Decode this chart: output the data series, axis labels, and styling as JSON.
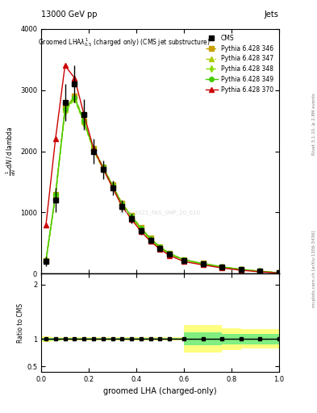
{
  "title_top": "13000 GeV pp",
  "title_right": "Jets",
  "plot_title": "Groomed LHA$\\lambda^1_{0.5}$ (charged only) (CMS jet substructure)",
  "xlabel": "groomed LHA (charged-only)",
  "ylabel": "$\\frac{1}{\\mathrm{d}N}\\,/\\,\\mathrm{d}\\,\\mathrm{lambda}$",
  "right_label": "mcplots.cern.ch [arXiv:1306.3436]",
  "right_label2": "Rivet 3.1.10, ≥ 2.8M events",
  "watermark": "CMS_2021_PAS_SMP_20_010",
  "x": [
    0.02,
    0.06,
    0.1,
    0.14,
    0.18,
    0.22,
    0.26,
    0.3,
    0.34,
    0.38,
    0.42,
    0.46,
    0.5,
    0.54,
    0.6,
    0.68,
    0.76,
    0.84,
    0.92,
    1.0
  ],
  "cms_y": [
    200,
    1200,
    2800,
    3100,
    2600,
    2000,
    1700,
    1400,
    1100,
    900,
    700,
    550,
    420,
    320,
    220,
    160,
    110,
    70,
    40,
    15
  ],
  "cms_yerr": [
    80,
    200,
    300,
    300,
    250,
    200,
    150,
    120,
    100,
    80,
    60,
    50,
    40,
    30,
    25,
    20,
    15,
    10,
    8,
    5
  ],
  "py346_y": [
    220,
    1300,
    2700,
    2900,
    2500,
    2050,
    1750,
    1450,
    1150,
    950,
    750,
    580,
    440,
    335,
    230,
    170,
    115,
    72,
    42,
    16
  ],
  "py347_y": [
    215,
    1280,
    2680,
    2880,
    2480,
    2030,
    1730,
    1430,
    1130,
    930,
    730,
    565,
    430,
    328,
    225,
    165,
    112,
    70,
    41,
    15
  ],
  "py348_y": [
    210,
    1260,
    2650,
    2850,
    2460,
    2010,
    1710,
    1410,
    1110,
    910,
    710,
    550,
    420,
    320,
    220,
    162,
    110,
    68,
    40,
    14
  ],
  "py349_y": [
    220,
    1290,
    2690,
    2880,
    2490,
    2040,
    1740,
    1440,
    1140,
    940,
    740,
    575,
    435,
    332,
    228,
    168,
    114,
    71,
    42,
    16
  ],
  "py370_y": [
    800,
    2200,
    3400,
    3200,
    2600,
    2050,
    1720,
    1410,
    1100,
    890,
    690,
    530,
    400,
    300,
    200,
    145,
    95,
    58,
    32,
    12
  ],
  "ratio_x_edges": [
    0.0,
    0.04,
    0.08,
    0.12,
    0.16,
    0.2,
    0.24,
    0.28,
    0.32,
    0.36,
    0.4,
    0.44,
    0.48,
    0.52,
    0.56,
    0.6,
    0.68,
    0.76,
    0.84,
    0.92,
    1.0
  ],
  "ratio_yellow_lo": [
    0.95,
    0.96,
    0.97,
    0.97,
    0.97,
    0.97,
    0.97,
    0.97,
    0.97,
    0.97,
    0.97,
    0.97,
    0.97,
    0.97,
    0.97,
    0.75,
    0.75,
    0.8,
    0.82,
    0.82
  ],
  "ratio_yellow_hi": [
    1.05,
    1.04,
    1.03,
    1.03,
    1.03,
    1.03,
    1.03,
    1.03,
    1.03,
    1.03,
    1.03,
    1.03,
    1.03,
    1.03,
    1.03,
    1.25,
    1.25,
    1.2,
    1.18,
    1.18
  ],
  "ratio_green_lo": [
    0.98,
    0.98,
    0.985,
    0.985,
    0.985,
    0.985,
    0.985,
    0.985,
    0.985,
    0.985,
    0.985,
    0.985,
    0.985,
    0.985,
    0.985,
    0.88,
    0.88,
    0.9,
    0.9,
    0.9
  ],
  "ratio_green_hi": [
    1.02,
    1.02,
    1.015,
    1.015,
    1.015,
    1.015,
    1.015,
    1.015,
    1.015,
    1.015,
    1.015,
    1.015,
    1.015,
    1.015,
    1.015,
    1.12,
    1.12,
    1.1,
    1.1,
    1.1
  ],
  "color_cms": "#000000",
  "color_346": "#c8a000",
  "color_347": "#aacc00",
  "color_348": "#88dd00",
  "color_349": "#44cc00",
  "color_370": "#cc0000",
  "color_yellow": "#ffff80",
  "color_green": "#80ee80",
  "ylim_main": [
    0,
    4000
  ],
  "ylim_ratio": [
    0.4,
    2.2
  ],
  "xlim": [
    0.0,
    1.0
  ]
}
